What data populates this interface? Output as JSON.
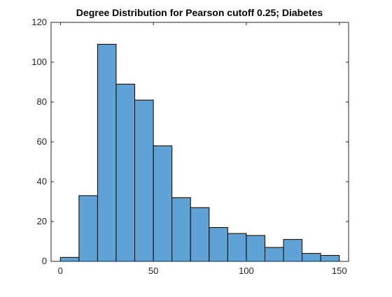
{
  "chart_data": {
    "type": "bar",
    "title": "Degree Distribution for Pearson cutoff 0.25; Diabetes",
    "xlabel": "",
    "ylabel": "",
    "xlim": [
      -5,
      155
    ],
    "ylim": [
      0,
      120
    ],
    "bin_width": 10,
    "bins": [
      {
        "x_start": 0,
        "x_end": 10,
        "count": 2
      },
      {
        "x_start": 10,
        "x_end": 20,
        "count": 33
      },
      {
        "x_start": 20,
        "x_end": 30,
        "count": 109
      },
      {
        "x_start": 30,
        "x_end": 40,
        "count": 89
      },
      {
        "x_start": 40,
        "x_end": 50,
        "count": 81
      },
      {
        "x_start": 50,
        "x_end": 60,
        "count": 58
      },
      {
        "x_start": 60,
        "x_end": 70,
        "count": 32
      },
      {
        "x_start": 70,
        "x_end": 80,
        "count": 27
      },
      {
        "x_start": 80,
        "x_end": 90,
        "count": 17
      },
      {
        "x_start": 90,
        "x_end": 100,
        "count": 14
      },
      {
        "x_start": 100,
        "x_end": 110,
        "count": 13
      },
      {
        "x_start": 110,
        "x_end": 120,
        "count": 7
      },
      {
        "x_start": 120,
        "x_end": 130,
        "count": 11
      },
      {
        "x_start": 130,
        "x_end": 140,
        "count": 4
      },
      {
        "x_start": 140,
        "x_end": 150,
        "count": 3
      }
    ],
    "x_ticks": [
      0,
      50,
      100,
      150
    ],
    "x_tick_labels": [
      "0",
      "50",
      "100",
      "150"
    ],
    "y_ticks": [
      0,
      20,
      40,
      60,
      80,
      100,
      120
    ],
    "y_tick_labels": [
      "0",
      "20",
      "40",
      "60",
      "80",
      "100",
      "120"
    ],
    "grid": false,
    "colors": {
      "bar_fill": "#5fa2d6",
      "bar_edge": "#000000",
      "axes": "#262626",
      "background": "#ffffff"
    }
  }
}
